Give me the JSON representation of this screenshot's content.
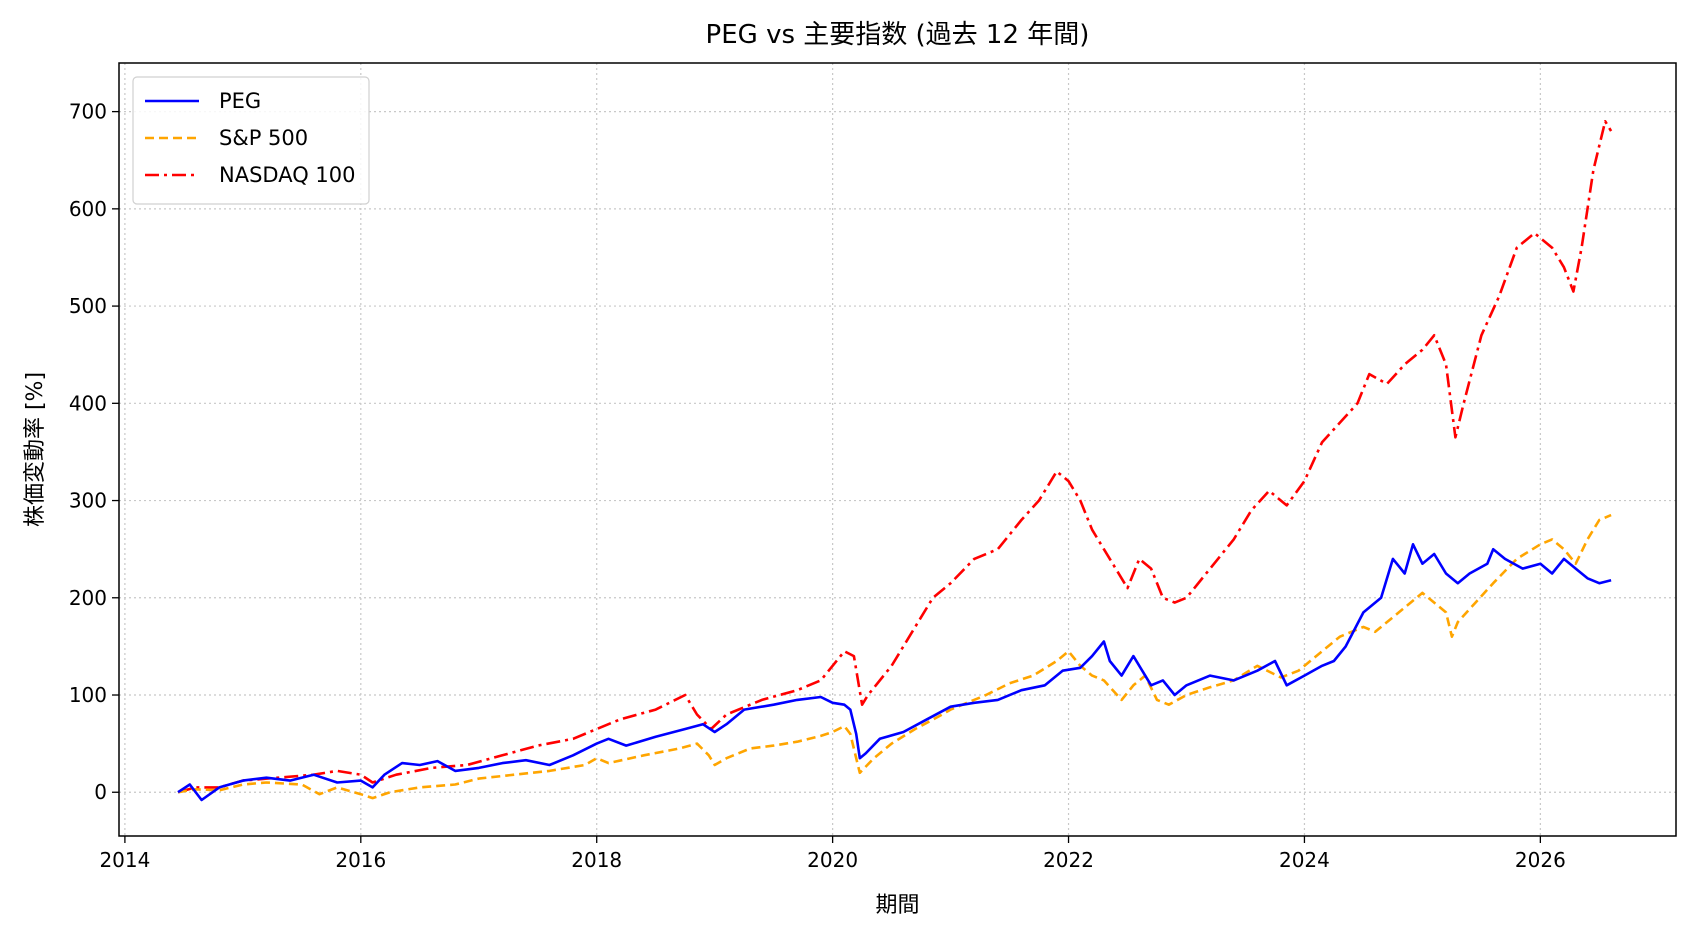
{
  "chart_data": {
    "type": "line",
    "title": "PEG vs 主要指数 (過去 12 年間)",
    "xlabel": "期間",
    "ylabel": "株価変動率 [%]",
    "xlim": [
      2013.95,
      2027.15
    ],
    "ylim": [
      -45,
      750
    ],
    "xticks": [
      2014,
      2016,
      2018,
      2020,
      2022,
      2024,
      2026
    ],
    "xtick_labels": [
      "2014",
      "2016",
      "2018",
      "2020",
      "2022",
      "2024",
      "2026"
    ],
    "yticks": [
      0,
      100,
      200,
      300,
      400,
      500,
      600,
      700
    ],
    "ytick_labels": [
      "0",
      "100",
      "200",
      "300",
      "400",
      "500",
      "600",
      "700"
    ],
    "grid": true,
    "legend_position": "top-left",
    "series": [
      {
        "name": "PEG",
        "color": "#0000ff",
        "style": "solid",
        "points": [
          [
            2014.45,
            0
          ],
          [
            2014.55,
            8
          ],
          [
            2014.65,
            -8
          ],
          [
            2014.8,
            5
          ],
          [
            2015.0,
            12
          ],
          [
            2015.2,
            15
          ],
          [
            2015.4,
            12
          ],
          [
            2015.6,
            18
          ],
          [
            2015.8,
            10
          ],
          [
            2016.0,
            12
          ],
          [
            2016.1,
            5
          ],
          [
            2016.2,
            18
          ],
          [
            2016.35,
            30
          ],
          [
            2016.5,
            28
          ],
          [
            2016.65,
            32
          ],
          [
            2016.8,
            22
          ],
          [
            2017.0,
            25
          ],
          [
            2017.2,
            30
          ],
          [
            2017.4,
            33
          ],
          [
            2017.6,
            28
          ],
          [
            2017.8,
            38
          ],
          [
            2018.0,
            50
          ],
          [
            2018.1,
            55
          ],
          [
            2018.25,
            48
          ],
          [
            2018.5,
            57
          ],
          [
            2018.75,
            65
          ],
          [
            2018.9,
            70
          ],
          [
            2019.0,
            62
          ],
          [
            2019.1,
            70
          ],
          [
            2019.25,
            85
          ],
          [
            2019.5,
            90
          ],
          [
            2019.7,
            95
          ],
          [
            2019.9,
            98
          ],
          [
            2020.0,
            92
          ],
          [
            2020.1,
            90
          ],
          [
            2020.15,
            85
          ],
          [
            2020.2,
            60
          ],
          [
            2020.23,
            35
          ],
          [
            2020.28,
            40
          ],
          [
            2020.4,
            55
          ],
          [
            2020.6,
            62
          ],
          [
            2020.8,
            75
          ],
          [
            2021.0,
            88
          ],
          [
            2021.2,
            92
          ],
          [
            2021.4,
            95
          ],
          [
            2021.6,
            105
          ],
          [
            2021.8,
            110
          ],
          [
            2021.95,
            125
          ],
          [
            2022.1,
            128
          ],
          [
            2022.2,
            140
          ],
          [
            2022.3,
            155
          ],
          [
            2022.35,
            135
          ],
          [
            2022.45,
            120
          ],
          [
            2022.55,
            140
          ],
          [
            2022.7,
            110
          ],
          [
            2022.8,
            115
          ],
          [
            2022.9,
            100
          ],
          [
            2023.0,
            110
          ],
          [
            2023.2,
            120
          ],
          [
            2023.4,
            115
          ],
          [
            2023.6,
            125
          ],
          [
            2023.75,
            135
          ],
          [
            2023.85,
            110
          ],
          [
            2024.0,
            120
          ],
          [
            2024.15,
            130
          ],
          [
            2024.25,
            135
          ],
          [
            2024.35,
            150
          ],
          [
            2024.5,
            185
          ],
          [
            2024.65,
            200
          ],
          [
            2024.75,
            240
          ],
          [
            2024.85,
            225
          ],
          [
            2024.92,
            255
          ],
          [
            2025.0,
            235
          ],
          [
            2025.1,
            245
          ],
          [
            2025.2,
            225
          ],
          [
            2025.3,
            215
          ],
          [
            2025.4,
            225
          ],
          [
            2025.55,
            235
          ],
          [
            2025.6,
            250
          ],
          [
            2025.7,
            240
          ],
          [
            2025.85,
            230
          ],
          [
            2026.0,
            235
          ],
          [
            2026.1,
            225
          ],
          [
            2026.2,
            240
          ],
          [
            2026.3,
            230
          ],
          [
            2026.4,
            220
          ],
          [
            2026.5,
            215
          ],
          [
            2026.6,
            218
          ]
        ]
      },
      {
        "name": "S&P 500",
        "color": "#ffa500",
        "style": "dashed",
        "points": [
          [
            2014.45,
            0
          ],
          [
            2014.6,
            3
          ],
          [
            2014.8,
            2
          ],
          [
            2015.0,
            8
          ],
          [
            2015.2,
            10
          ],
          [
            2015.5,
            8
          ],
          [
            2015.65,
            -2
          ],
          [
            2015.8,
            5
          ],
          [
            2016.0,
            -2
          ],
          [
            2016.1,
            -6
          ],
          [
            2016.25,
            0
          ],
          [
            2016.5,
            5
          ],
          [
            2016.8,
            8
          ],
          [
            2017.0,
            14
          ],
          [
            2017.3,
            18
          ],
          [
            2017.6,
            22
          ],
          [
            2017.9,
            28
          ],
          [
            2018.0,
            35
          ],
          [
            2018.1,
            30
          ],
          [
            2018.4,
            38
          ],
          [
            2018.7,
            45
          ],
          [
            2018.85,
            50
          ],
          [
            2018.95,
            38
          ],
          [
            2019.0,
            28
          ],
          [
            2019.1,
            35
          ],
          [
            2019.3,
            45
          ],
          [
            2019.5,
            48
          ],
          [
            2019.7,
            52
          ],
          [
            2019.9,
            58
          ],
          [
            2020.0,
            62
          ],
          [
            2020.1,
            68
          ],
          [
            2020.15,
            60
          ],
          [
            2020.2,
            35
          ],
          [
            2020.23,
            20
          ],
          [
            2020.35,
            35
          ],
          [
            2020.5,
            50
          ],
          [
            2020.7,
            65
          ],
          [
            2020.9,
            78
          ],
          [
            2021.0,
            85
          ],
          [
            2021.3,
            100
          ],
          [
            2021.5,
            112
          ],
          [
            2021.7,
            120
          ],
          [
            2021.9,
            135
          ],
          [
            2022.0,
            145
          ],
          [
            2022.1,
            130
          ],
          [
            2022.2,
            120
          ],
          [
            2022.3,
            115
          ],
          [
            2022.45,
            95
          ],
          [
            2022.55,
            110
          ],
          [
            2022.65,
            120
          ],
          [
            2022.75,
            95
          ],
          [
            2022.85,
            90
          ],
          [
            2023.0,
            100
          ],
          [
            2023.2,
            108
          ],
          [
            2023.4,
            115
          ],
          [
            2023.6,
            130
          ],
          [
            2023.8,
            118
          ],
          [
            2023.95,
            125
          ],
          [
            2024.1,
            140
          ],
          [
            2024.3,
            160
          ],
          [
            2024.5,
            170
          ],
          [
            2024.6,
            165
          ],
          [
            2024.8,
            185
          ],
          [
            2025.0,
            205
          ],
          [
            2025.1,
            195
          ],
          [
            2025.2,
            185
          ],
          [
            2025.25,
            160
          ],
          [
            2025.3,
            175
          ],
          [
            2025.45,
            195
          ],
          [
            2025.6,
            215
          ],
          [
            2025.8,
            240
          ],
          [
            2026.0,
            255
          ],
          [
            2026.1,
            260
          ],
          [
            2026.2,
            250
          ],
          [
            2026.3,
            235
          ],
          [
            2026.4,
            260
          ],
          [
            2026.5,
            280
          ],
          [
            2026.6,
            285
          ]
        ]
      },
      {
        "name": "NASDAQ 100",
        "color": "#ff0000",
        "style": "dashdot",
        "points": [
          [
            2014.45,
            0
          ],
          [
            2014.6,
            5
          ],
          [
            2014.8,
            5
          ],
          [
            2015.0,
            12
          ],
          [
            2015.3,
            15
          ],
          [
            2015.6,
            18
          ],
          [
            2015.8,
            22
          ],
          [
            2016.0,
            18
          ],
          [
            2016.1,
            10
          ],
          [
            2016.3,
            18
          ],
          [
            2016.6,
            25
          ],
          [
            2016.9,
            28
          ],
          [
            2017.2,
            38
          ],
          [
            2017.5,
            48
          ],
          [
            2017.8,
            55
          ],
          [
            2018.0,
            65
          ],
          [
            2018.2,
            75
          ],
          [
            2018.5,
            85
          ],
          [
            2018.75,
            100
          ],
          [
            2018.85,
            80
          ],
          [
            2018.97,
            65
          ],
          [
            2019.1,
            80
          ],
          [
            2019.4,
            95
          ],
          [
            2019.7,
            105
          ],
          [
            2019.9,
            115
          ],
          [
            2020.1,
            145
          ],
          [
            2020.18,
            140
          ],
          [
            2020.25,
            90
          ],
          [
            2020.3,
            100
          ],
          [
            2020.5,
            130
          ],
          [
            2020.7,
            170
          ],
          [
            2020.85,
            200
          ],
          [
            2021.0,
            215
          ],
          [
            2021.2,
            240
          ],
          [
            2021.4,
            250
          ],
          [
            2021.6,
            280
          ],
          [
            2021.75,
            300
          ],
          [
            2021.9,
            330
          ],
          [
            2022.0,
            320
          ],
          [
            2022.1,
            300
          ],
          [
            2022.2,
            270
          ],
          [
            2022.3,
            250
          ],
          [
            2022.4,
            230
          ],
          [
            2022.5,
            210
          ],
          [
            2022.6,
            240
          ],
          [
            2022.7,
            230
          ],
          [
            2022.8,
            200
          ],
          [
            2022.9,
            195
          ],
          [
            2023.0,
            200
          ],
          [
            2023.2,
            230
          ],
          [
            2023.4,
            260
          ],
          [
            2023.55,
            290
          ],
          [
            2023.7,
            310
          ],
          [
            2023.85,
            295
          ],
          [
            2024.0,
            320
          ],
          [
            2024.15,
            360
          ],
          [
            2024.3,
            380
          ],
          [
            2024.45,
            400
          ],
          [
            2024.55,
            430
          ],
          [
            2024.7,
            420
          ],
          [
            2024.85,
            440
          ],
          [
            2025.0,
            455
          ],
          [
            2025.1,
            470
          ],
          [
            2025.2,
            440
          ],
          [
            2025.28,
            365
          ],
          [
            2025.35,
            400
          ],
          [
            2025.5,
            470
          ],
          [
            2025.65,
            510
          ],
          [
            2025.8,
            560
          ],
          [
            2025.95,
            575
          ],
          [
            2026.1,
            560
          ],
          [
            2026.2,
            540
          ],
          [
            2026.28,
            515
          ],
          [
            2026.35,
            560
          ],
          [
            2026.45,
            640
          ],
          [
            2026.55,
            690
          ],
          [
            2026.6,
            680
          ]
        ]
      }
    ]
  }
}
